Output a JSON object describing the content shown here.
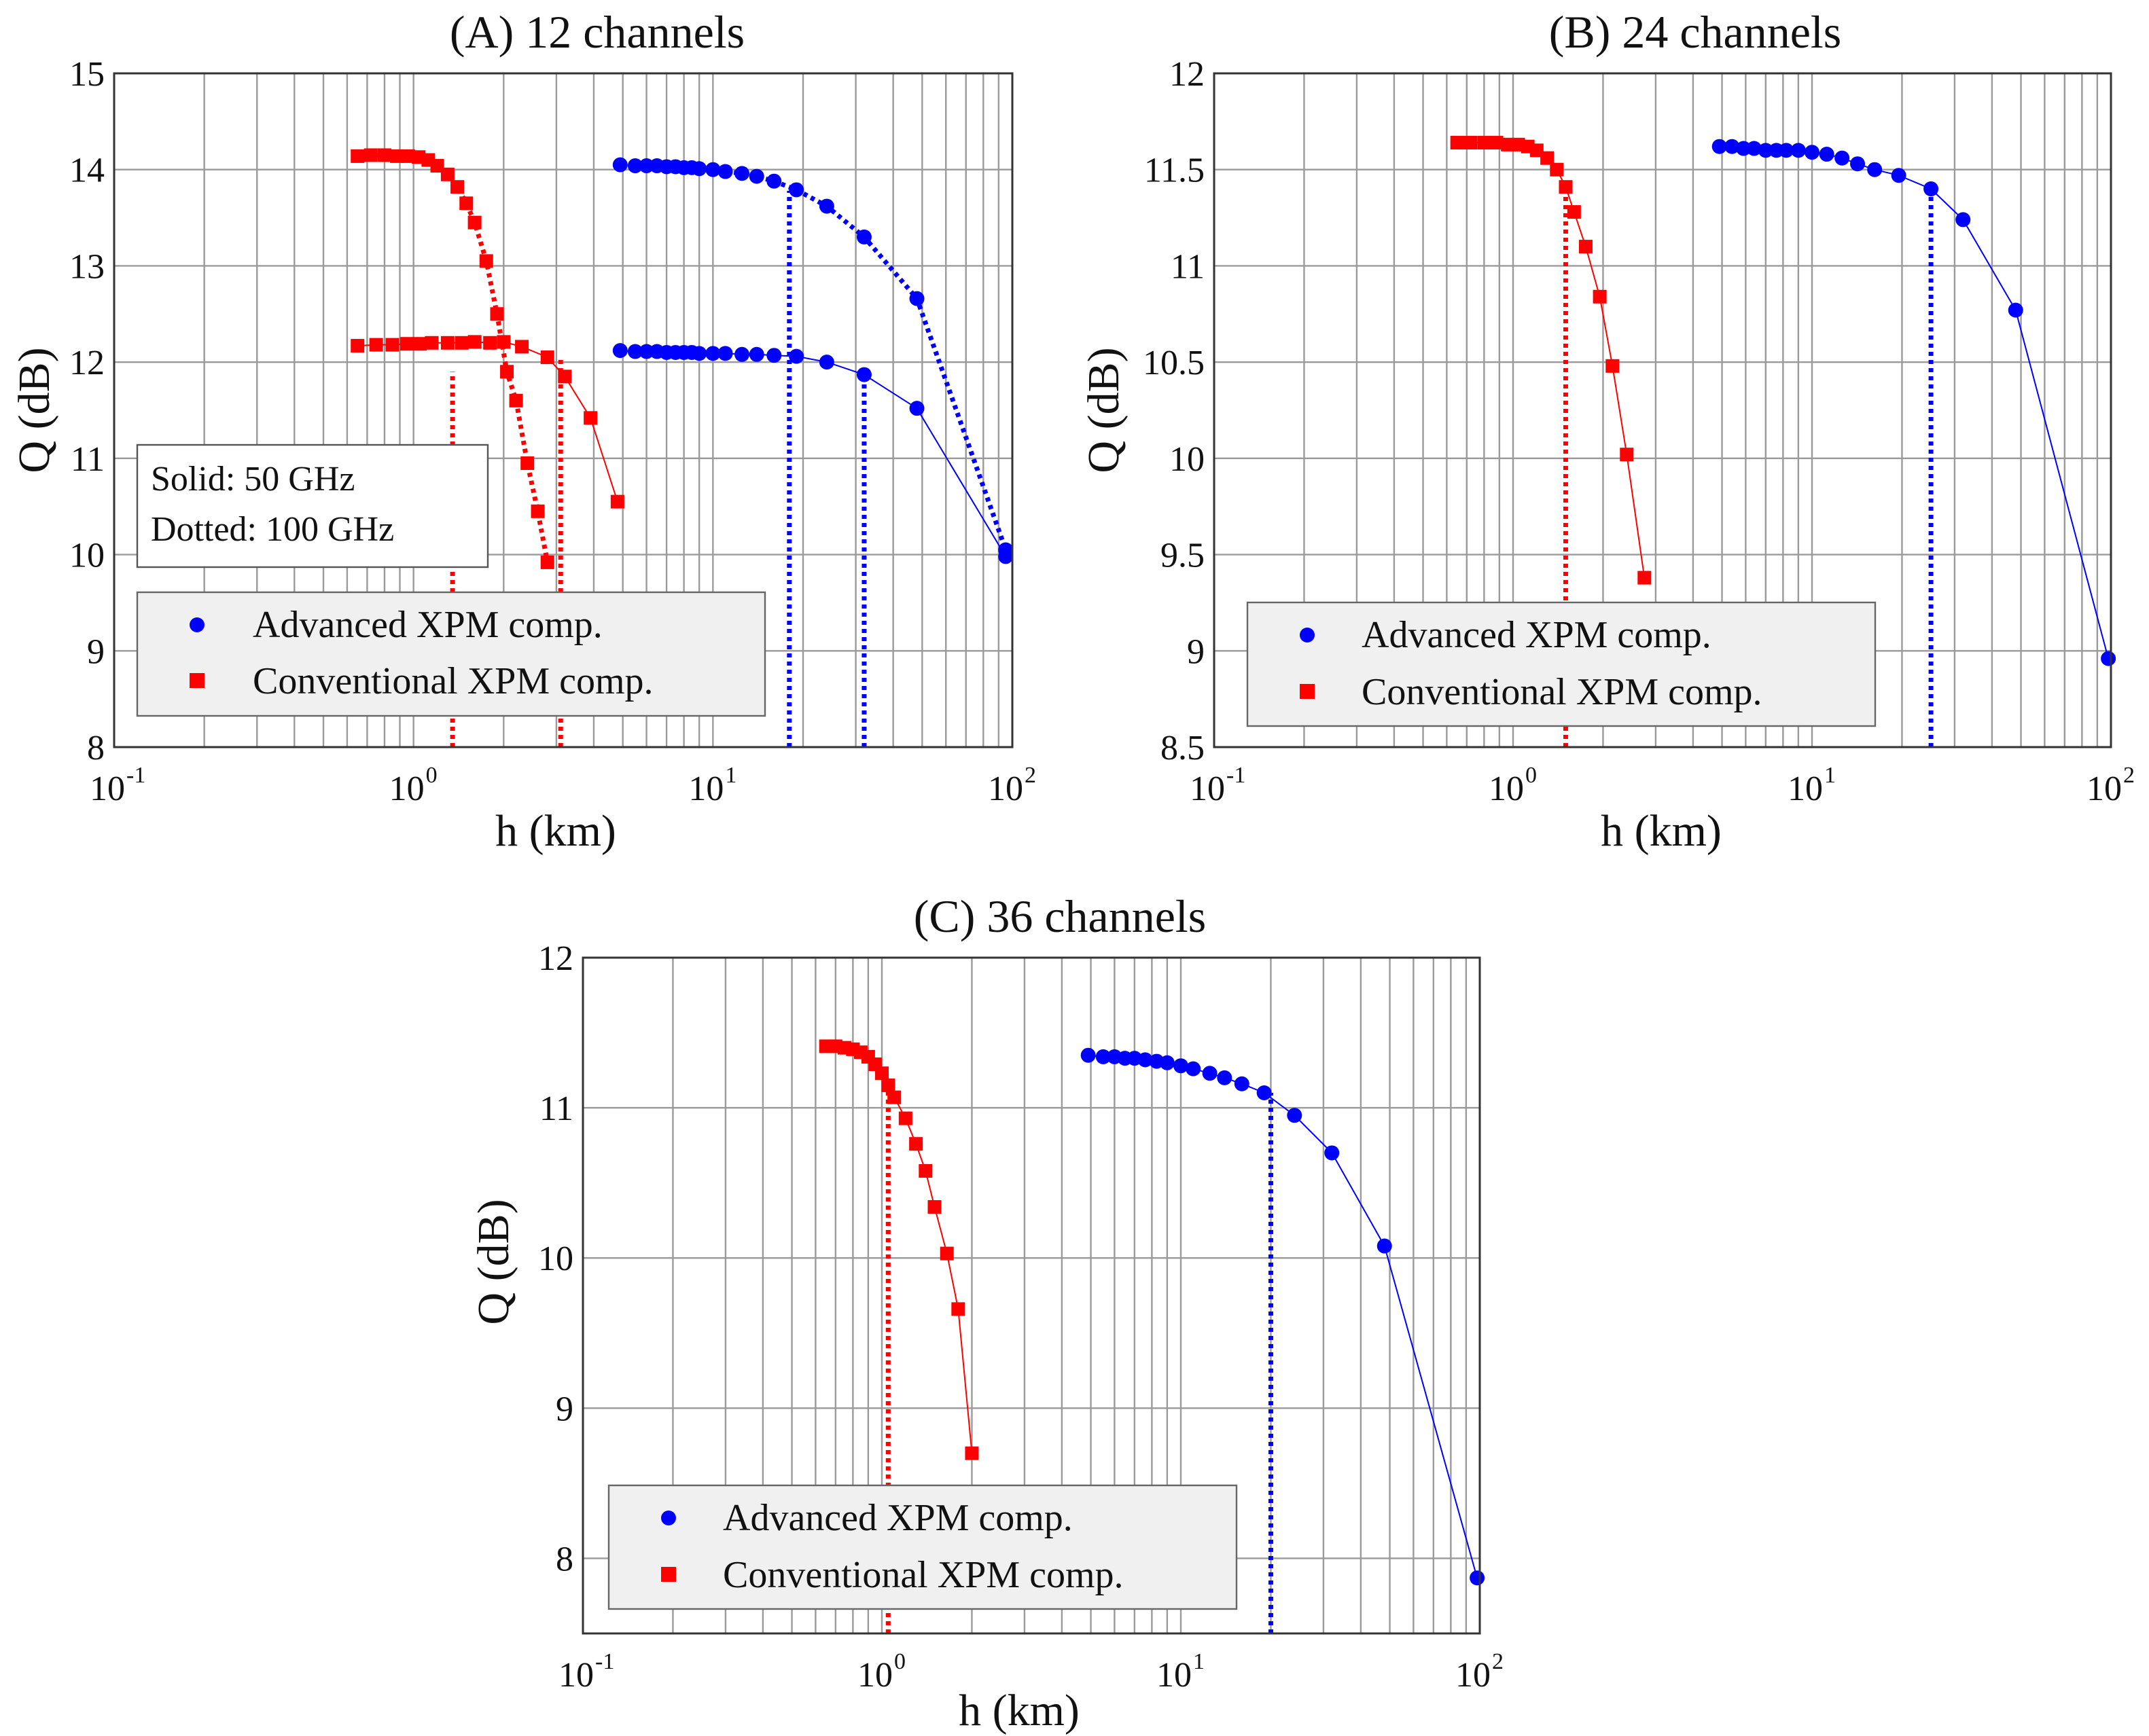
{
  "chart_data": [
    {
      "id": "A",
      "type": "line",
      "title": "(A) 12 channels",
      "xlabel": "h (km)",
      "ylabel": "Q (dB)",
      "x_scale": "log",
      "xlim": [
        0.1,
        100
      ],
      "ylim": [
        8,
        15
      ],
      "xtick_labels": [
        {
          "base": "10",
          "exp": "-1",
          "value": 0.1
        },
        {
          "base": "10",
          "exp": "0",
          "value": 1
        },
        {
          "base": "10",
          "exp": "1",
          "value": 10
        },
        {
          "base": "10",
          "exp": "2",
          "value": 100
        }
      ],
      "ytick_labels": [
        "8",
        "9",
        "10",
        "11",
        "12",
        "13",
        "14",
        "15"
      ],
      "yticks": [
        8,
        9,
        10,
        11,
        12,
        13,
        14,
        15
      ],
      "grid": true,
      "legend": {
        "position": "lower-left",
        "entries": [
          {
            "label": "Advanced XPM comp.",
            "marker": "circle",
            "color": "#0000ff"
          },
          {
            "label": "Conventional XPM comp.",
            "marker": "square",
            "color": "#ff0000"
          }
        ]
      },
      "note": {
        "position": "left",
        "lines": [
          "Solid: 50 GHz",
          "Dotted: 100 GHz"
        ]
      },
      "series": [
        {
          "group": "Conventional XPM comp.",
          "style": "solid",
          "color": "#ff0000",
          "marker": "square",
          "x": [
            0.65,
            0.75,
            0.85,
            0.95,
            1.05,
            1.15,
            1.3,
            1.45,
            1.6,
            1.8,
            2.0,
            2.3,
            2.8,
            3.2,
            3.9,
            4.8
          ],
          "y": [
            12.17,
            12.18,
            12.18,
            12.19,
            12.19,
            12.2,
            12.2,
            12.2,
            12.21,
            12.2,
            12.21,
            12.16,
            12.05,
            11.85,
            11.42,
            10.55
          ]
        },
        {
          "group": "Conventional XPM comp.",
          "style": "dotted",
          "color": "#ff0000",
          "marker": "square",
          "x": [
            0.65,
            0.72,
            0.8,
            0.88,
            0.96,
            1.04,
            1.12,
            1.2,
            1.3,
            1.4,
            1.5,
            1.6,
            1.75,
            1.9,
            2.05,
            2.2,
            2.4,
            2.6,
            2.8
          ],
          "y": [
            14.14,
            14.15,
            14.15,
            14.14,
            14.14,
            14.13,
            14.1,
            14.04,
            13.95,
            13.82,
            13.65,
            13.45,
            13.05,
            12.5,
            11.9,
            11.6,
            10.95,
            10.45,
            9.92
          ]
        },
        {
          "group": "Advanced XPM comp.",
          "style": "solid",
          "color": "#0000ff",
          "marker": "circle",
          "x": [
            4.9,
            5.5,
            6,
            6.5,
            7,
            7.5,
            8,
            8.5,
            9,
            10,
            11,
            12.5,
            14,
            16,
            19,
            24,
            32,
            48,
            95
          ],
          "y": [
            12.12,
            12.11,
            12.11,
            12.11,
            12.1,
            12.1,
            12.1,
            12.1,
            12.09,
            12.09,
            12.09,
            12.08,
            12.08,
            12.07,
            12.06,
            12.0,
            11.87,
            11.52,
            9.98
          ]
        },
        {
          "group": "Advanced XPM comp.",
          "style": "dotted",
          "color": "#0000ff",
          "marker": "circle",
          "x": [
            4.9,
            5.5,
            6,
            6.5,
            7,
            7.5,
            8,
            8.5,
            9,
            10,
            11,
            12.5,
            14,
            16,
            19,
            24,
            32,
            48,
            95
          ],
          "y": [
            14.05,
            14.04,
            14.04,
            14.04,
            14.03,
            14.03,
            14.02,
            14.02,
            14.01,
            14.0,
            13.98,
            13.96,
            13.93,
            13.88,
            13.79,
            13.62,
            13.3,
            12.66,
            10.05
          ]
        }
      ],
      "vlines": [
        {
          "x": 1.35,
          "color": "#ff0000"
        },
        {
          "x": 3.1,
          "color": "#ff0000"
        },
        {
          "x": 18,
          "color": "#0000ff"
        },
        {
          "x": 32,
          "color": "#0000ff"
        }
      ]
    },
    {
      "id": "B",
      "type": "line",
      "title": "(B) 24 channels",
      "xlabel": "h (km)",
      "ylabel": "Q (dB)",
      "x_scale": "log",
      "xlim": [
        0.1,
        100
      ],
      "ylim": [
        8.5,
        12
      ],
      "xtick_labels": [
        {
          "base": "10",
          "exp": "-1",
          "value": 0.1
        },
        {
          "base": "10",
          "exp": "0",
          "value": 1
        },
        {
          "base": "10",
          "exp": "1",
          "value": 10
        },
        {
          "base": "10",
          "exp": "2",
          "value": 100
        }
      ],
      "ytick_labels": [
        "8.5",
        "9",
        "9.5",
        "10",
        "10.5",
        "11",
        "11.5",
        "12"
      ],
      "yticks": [
        8.5,
        9,
        9.5,
        10,
        10.5,
        11,
        11.5,
        12
      ],
      "grid": true,
      "legend": {
        "position": "lower-left",
        "entries": [
          {
            "label": "Advanced XPM comp.",
            "marker": "circle",
            "color": "#0000ff"
          },
          {
            "label": "Conventional XPM comp.",
            "marker": "square",
            "color": "#ff0000"
          }
        ]
      },
      "series": [
        {
          "group": "Conventional XPM comp.",
          "style": "solid",
          "color": "#ff0000",
          "marker": "square",
          "x": [
            0.65,
            0.72,
            0.8,
            0.88,
            0.96,
            1.04,
            1.12,
            1.2,
            1.3,
            1.4,
            1.5,
            1.6,
            1.75,
            1.95,
            2.15,
            2.4,
            2.75
          ],
          "y": [
            11.64,
            11.64,
            11.64,
            11.64,
            11.63,
            11.63,
            11.62,
            11.6,
            11.56,
            11.5,
            11.41,
            11.28,
            11.1,
            10.84,
            10.48,
            10.02,
            9.38
          ]
        },
        {
          "group": "Advanced XPM comp.",
          "style": "solid",
          "color": "#0000ff",
          "marker": "circle",
          "x": [
            4.9,
            5.4,
            5.9,
            6.4,
            7,
            7.6,
            8.2,
            9,
            10,
            11.2,
            12.6,
            14.2,
            16.2,
            19.5,
            25,
            32,
            48,
            98
          ],
          "y": [
            11.62,
            11.62,
            11.61,
            11.61,
            11.6,
            11.6,
            11.6,
            11.6,
            11.59,
            11.58,
            11.56,
            11.53,
            11.5,
            11.47,
            11.4,
            11.24,
            10.77,
            8.96
          ]
        }
      ],
      "vlines": [
        {
          "x": 1.5,
          "color": "#ff0000"
        },
        {
          "x": 25,
          "color": "#0000ff"
        }
      ]
    },
    {
      "id": "C",
      "type": "line",
      "title": "(C) 36 channels",
      "xlabel": "h (km)",
      "ylabel": "Q (dB)",
      "x_scale": "log",
      "xlim": [
        0.1,
        100
      ],
      "ylim": [
        7.5,
        12
      ],
      "xtick_labels": [
        {
          "base": "10",
          "exp": "-1",
          "value": 0.1
        },
        {
          "base": "10",
          "exp": "0",
          "value": 1
        },
        {
          "base": "10",
          "exp": "1",
          "value": 10
        },
        {
          "base": "10",
          "exp": "2",
          "value": 100
        }
      ],
      "ytick_labels": [
        "8",
        "9",
        "10",
        "11",
        "12"
      ],
      "yticks": [
        8,
        9,
        10,
        11,
        12
      ],
      "grid": true,
      "legend": {
        "position": "lower-left",
        "entries": [
          {
            "label": "Advanced XPM comp.",
            "marker": "circle",
            "color": "#0000ff"
          },
          {
            "label": "Conventional XPM comp.",
            "marker": "square",
            "color": "#ff0000"
          }
        ]
      },
      "series": [
        {
          "group": "Conventional XPM comp.",
          "style": "solid",
          "color": "#ff0000",
          "marker": "square",
          "x": [
            0.65,
            0.7,
            0.75,
            0.8,
            0.85,
            0.9,
            0.95,
            1.0,
            1.05,
            1.1,
            1.2,
            1.3,
            1.4,
            1.5,
            1.65,
            1.8,
            2.0
          ],
          "y": [
            11.41,
            11.41,
            11.4,
            11.39,
            11.37,
            11.34,
            11.29,
            11.23,
            11.15,
            11.07,
            10.93,
            10.76,
            10.58,
            10.34,
            10.03,
            9.66,
            8.7
          ]
        },
        {
          "group": "Advanced XPM comp.",
          "style": "solid",
          "color": "#0000ff",
          "marker": "circle",
          "x": [
            4.9,
            5.5,
            6,
            6.5,
            7,
            7.6,
            8.3,
            9,
            10,
            11,
            12.5,
            14,
            16,
            19,
            24,
            32,
            48,
            98
          ],
          "y": [
            11.35,
            11.34,
            11.34,
            11.33,
            11.33,
            11.32,
            11.31,
            11.3,
            11.28,
            11.26,
            11.23,
            11.2,
            11.16,
            11.1,
            10.95,
            10.7,
            10.08,
            7.87
          ]
        }
      ],
      "vlines": [
        {
          "x": 1.05,
          "color": "#ff0000"
        },
        {
          "x": 20,
          "color": "#0000ff"
        }
      ]
    }
  ]
}
